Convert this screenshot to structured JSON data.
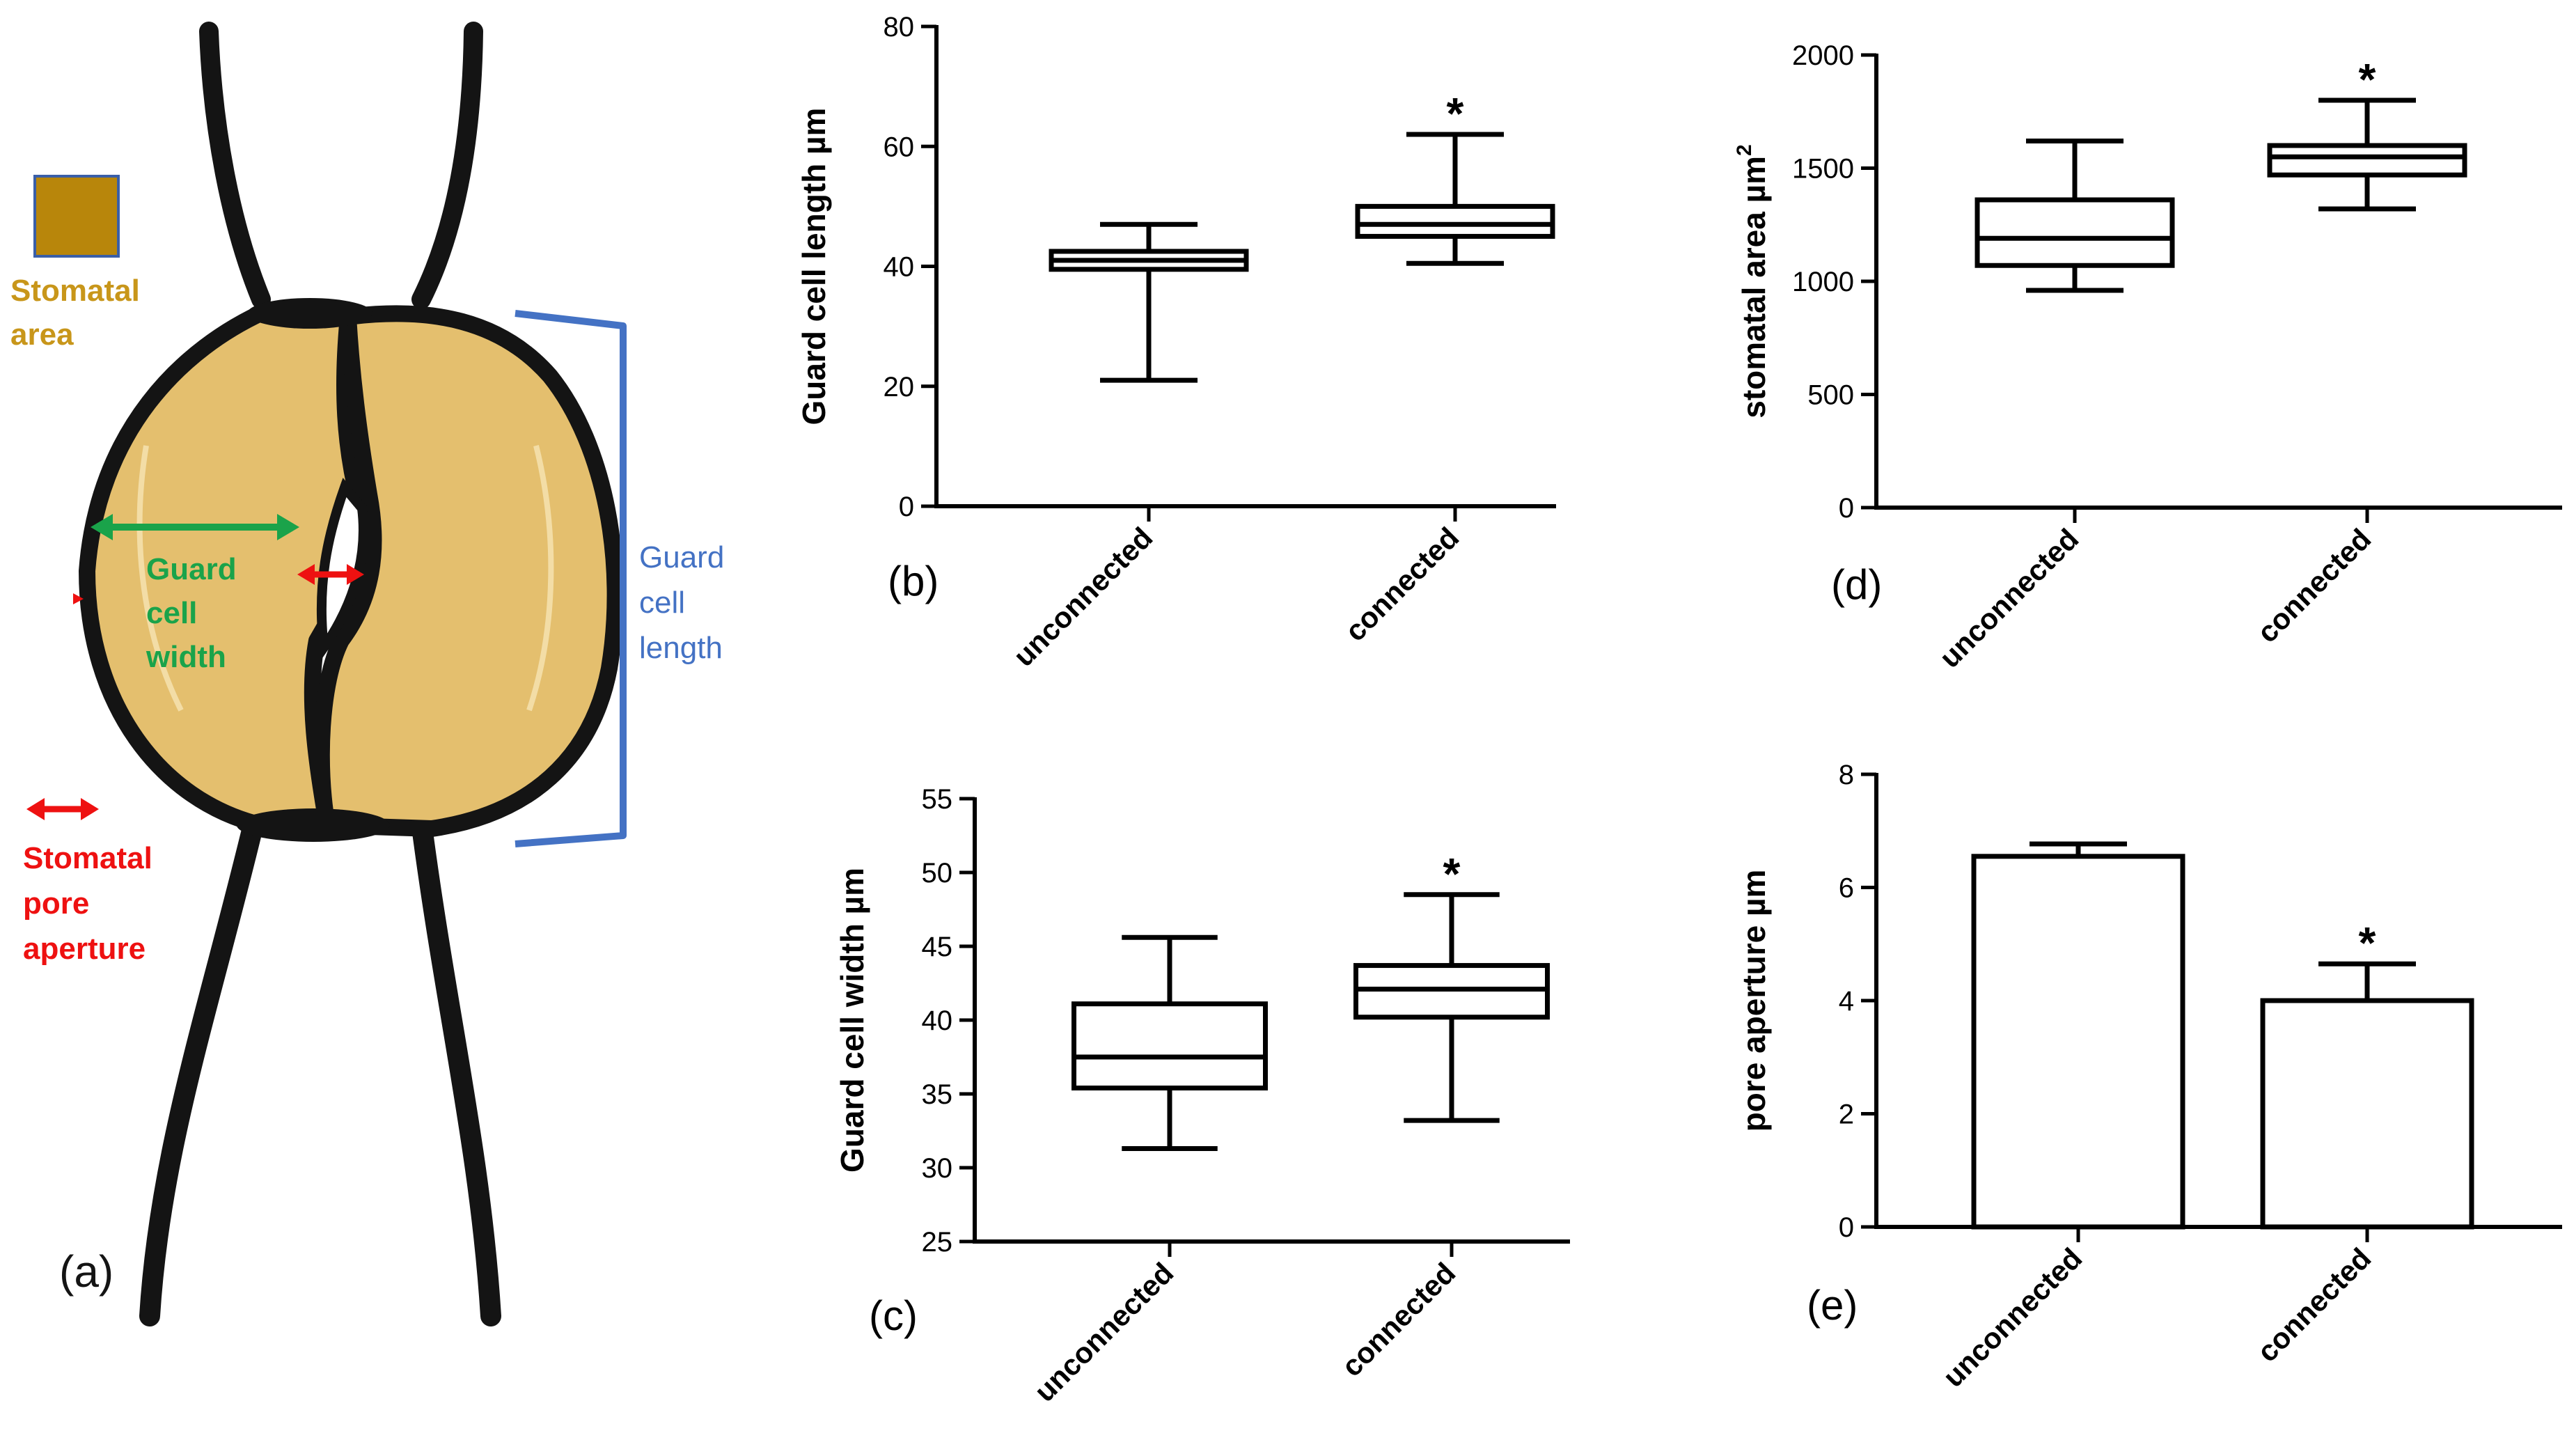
{
  "diagram": {
    "panel_label": "(a)",
    "legend_area": "Stomatal area",
    "label_width_lines": [
      "Guard",
      "cell",
      "width"
    ],
    "label_length_lines": [
      "Guard",
      "cell",
      "length"
    ],
    "label_area_lines": [
      "Stomatal",
      "area"
    ],
    "label_pore_lines": [
      "Stomatal",
      "pore",
      "aperture"
    ],
    "colors": {
      "cell_fill": "#e4bf6e",
      "legend_fill": "#b8860b",
      "outline": "#141414",
      "width_arrow": "#1aa34a",
      "length_bracket": "#4472c4",
      "pore_arrow": "#ee1111",
      "area_text": "#c8961a"
    }
  },
  "chart_data": [
    {
      "id": "b",
      "panel_label": "(b)",
      "type": "box",
      "ylabel": "Guard cell length µm",
      "ylabel_sup": "",
      "ylim": [
        0,
        80
      ],
      "yticks": [
        0,
        20,
        40,
        60,
        80
      ],
      "categories": [
        "unconnected",
        "connected"
      ],
      "series": [
        {
          "name": "unconnected",
          "min": 21,
          "q1": 39.5,
          "median": 41,
          "q3": 42.5,
          "max": 47,
          "star": ""
        },
        {
          "name": "connected",
          "min": 40.5,
          "q1": 45,
          "median": 47,
          "q3": 50,
          "max": 62,
          "star": "*"
        }
      ]
    },
    {
      "id": "c",
      "panel_label": "(c)",
      "type": "box",
      "ylabel": "Guard cell width µm",
      "ylabel_sup": "",
      "ylim": [
        25,
        55
      ],
      "yticks": [
        25,
        30,
        35,
        40,
        45,
        50,
        55
      ],
      "categories": [
        "unconnected",
        "connected"
      ],
      "series": [
        {
          "name": "unconnected",
          "min": 31.3,
          "q1": 35.4,
          "median": 37.5,
          "q3": 41.1,
          "max": 45.6,
          "star": ""
        },
        {
          "name": "connected",
          "min": 33.2,
          "q1": 40.2,
          "median": 42.1,
          "q3": 43.7,
          "max": 48.5,
          "star": "*"
        }
      ]
    },
    {
      "id": "d",
      "panel_label": "(d)",
      "type": "box",
      "ylabel": "stomatal area µm",
      "ylabel_sup": "2",
      "ylim": [
        0,
        2000
      ],
      "yticks": [
        0,
        500,
        1000,
        1500,
        2000
      ],
      "categories": [
        "unconnected",
        "connected"
      ],
      "series": [
        {
          "name": "unconnected",
          "min": 960,
          "q1": 1070,
          "median": 1190,
          "q3": 1360,
          "max": 1620,
          "star": ""
        },
        {
          "name": "connected",
          "min": 1320,
          "q1": 1470,
          "median": 1550,
          "q3": 1600,
          "max": 1800,
          "star": "*"
        }
      ]
    },
    {
      "id": "e",
      "panel_label": "(e)",
      "type": "bar",
      "ylabel": "pore aperture µm",
      "ylabel_sup": "",
      "ylim": [
        0,
        8
      ],
      "yticks": [
        0,
        2,
        4,
        6,
        8
      ],
      "categories": [
        "unconnected",
        "connected"
      ],
      "series": [
        {
          "name": "unconnected",
          "value": 6.55,
          "error": 0.22,
          "star": ""
        },
        {
          "name": "connected",
          "value": 4.0,
          "error": 0.65,
          "star": "*"
        }
      ]
    }
  ]
}
